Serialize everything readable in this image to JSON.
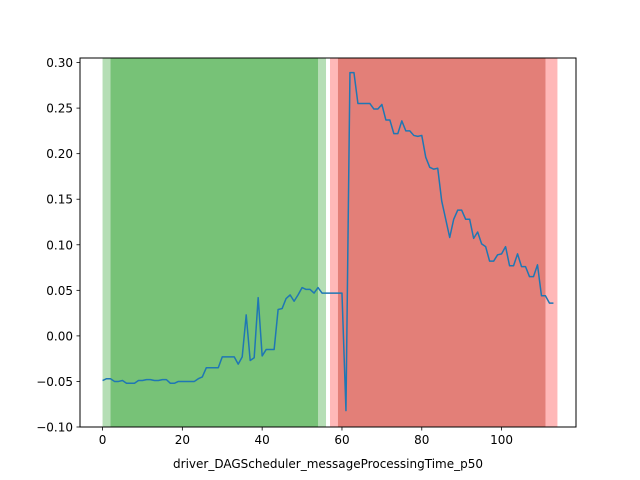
{
  "chart_data": {
    "type": "line",
    "title": "",
    "xlabel": "driver_DAGScheduler_messageProcessingTime_p50",
    "ylabel": "",
    "xlim": [
      -5.65,
      118.65
    ],
    "ylim": [
      -0.1,
      0.305
    ],
    "grid": false,
    "x_ticks": [
      0,
      20,
      40,
      60,
      80,
      100
    ],
    "x_tick_labels": [
      "0",
      "20",
      "40",
      "60",
      "80",
      "100"
    ],
    "y_ticks": [
      -0.1,
      -0.05,
      0.0,
      0.05,
      0.1,
      0.15,
      0.2,
      0.25,
      0.3
    ],
    "y_tick_labels": [
      "−0.10",
      "−0.05",
      "0.00",
      "0.05",
      "0.10",
      "0.15",
      "0.20",
      "0.25",
      "0.30"
    ],
    "bands": [
      {
        "x0": 0,
        "x1": 56,
        "color": "#2ca02c",
        "opacity": 0.35
      },
      {
        "x0": 2,
        "x1": 54,
        "color": "#2ca02c",
        "opacity": 0.45
      },
      {
        "x0": 57,
        "x1": 114,
        "color": "#ff0000",
        "opacity": 0.28
      },
      {
        "x0": 59,
        "x1": 111,
        "color": "#c0392b",
        "opacity": 0.45
      }
    ],
    "series": [
      {
        "color": "#1f77b4",
        "x": [
          0,
          1,
          2,
          3,
          4,
          5,
          6,
          7,
          8,
          9,
          10,
          11,
          12,
          13,
          14,
          15,
          16,
          17,
          18,
          19,
          20,
          21,
          22,
          23,
          24,
          25,
          26,
          27,
          28,
          29,
          30,
          31,
          32,
          33,
          34,
          35,
          36,
          37,
          38,
          39,
          40,
          41,
          42,
          43,
          44,
          45,
          46,
          47,
          48,
          49,
          50,
          51,
          52,
          53,
          54,
          55,
          56,
          57,
          58,
          59,
          60,
          61,
          62,
          63,
          64,
          65,
          66,
          67,
          68,
          69,
          70,
          71,
          72,
          73,
          74,
          75,
          76,
          77,
          78,
          79,
          80,
          81,
          82,
          83,
          84,
          85,
          86,
          87,
          88,
          89,
          90,
          91,
          92,
          93,
          94,
          95,
          96,
          97,
          98,
          99,
          100,
          101,
          102,
          103,
          104,
          105,
          106,
          107,
          108,
          109,
          110,
          111,
          112,
          113
        ],
        "y": [
          -0.049,
          -0.047,
          -0.047,
          -0.05,
          -0.05,
          -0.049,
          -0.052,
          -0.052,
          -0.052,
          -0.049,
          -0.049,
          -0.048,
          -0.048,
          -0.049,
          -0.049,
          -0.048,
          -0.048,
          -0.052,
          -0.052,
          -0.05,
          -0.05,
          -0.05,
          -0.05,
          -0.05,
          -0.047,
          -0.045,
          -0.035,
          -0.035,
          -0.035,
          -0.035,
          -0.023,
          -0.023,
          -0.023,
          -0.023,
          -0.031,
          -0.023,
          0.023,
          -0.027,
          -0.024,
          0.042,
          -0.022,
          -0.015,
          -0.015,
          -0.015,
          0.029,
          0.03,
          0.041,
          0.045,
          0.038,
          0.045,
          0.053,
          0.051,
          0.051,
          0.047,
          0.053,
          0.047,
          0.047,
          0.047,
          0.047,
          0.047,
          0.047,
          -0.082,
          0.289,
          0.289,
          0.255,
          0.255,
          0.255,
          0.255,
          0.249,
          0.249,
          0.254,
          0.237,
          0.237,
          0.222,
          0.222,
          0.236,
          0.225,
          0.225,
          0.22,
          0.219,
          0.22,
          0.196,
          0.185,
          0.183,
          0.184,
          0.148,
          0.128,
          0.108,
          0.128,
          0.138,
          0.138,
          0.128,
          0.128,
          0.107,
          0.114,
          0.101,
          0.098,
          0.082,
          0.082,
          0.089,
          0.09,
          0.098,
          0.077,
          0.077,
          0.09,
          0.076,
          0.076,
          0.065,
          0.065,
          0.078,
          0.044,
          0.044,
          0.036,
          0.036
        ]
      }
    ]
  }
}
